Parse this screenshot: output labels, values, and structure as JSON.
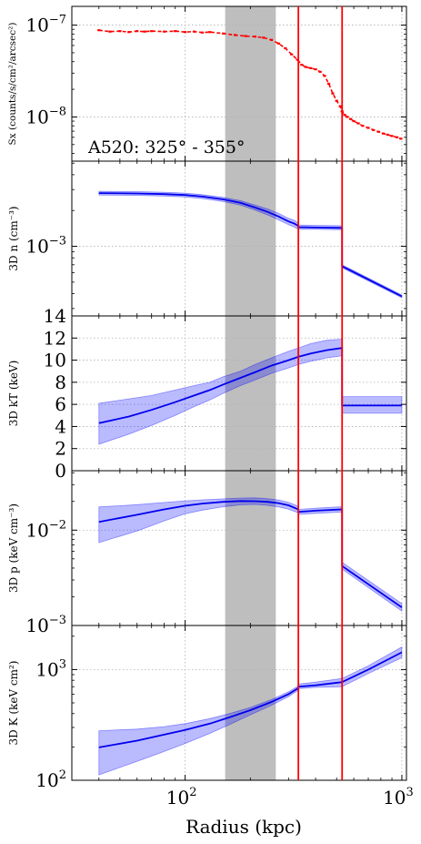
{
  "chart_data": {
    "type": "line",
    "annotation": "A520: 325° - 355°",
    "xlabel": "Radius (kpc)",
    "xscale": "log",
    "xlim": [
      30,
      1050
    ],
    "x_ticks": [
      {
        "value": 100,
        "base": "10",
        "exp": "2"
      },
      {
        "value": 1000,
        "base": "10",
        "exp": "3"
      }
    ],
    "shaded_band": {
      "x": [
        153,
        262
      ],
      "color": "#bebebe"
    },
    "vertical_lines": [
      {
        "x": 333,
        "color": "#ff0000"
      },
      {
        "x": 530,
        "color": "#ff0000"
      }
    ],
    "grid": "dotted",
    "panels": [
      {
        "id": "sx",
        "ylabel": "Sx (counts/s/cm²/arcsec²)",
        "yscale": "log",
        "ylim": [
          3.3e-09,
          1.6e-07
        ],
        "y_ticks": [
          {
            "value": 1e-07,
            "base": "10",
            "exp": "−7"
          },
          {
            "value": 1e-08,
            "base": "10",
            "exp": "−8"
          }
        ],
        "series": [
          {
            "kind": "points",
            "color": "#ff0000",
            "x": [
              40,
              45,
              50,
              55,
              60,
              65,
              70,
              80,
              90,
              100,
              110,
              120,
              130,
              150,
              170,
              190,
              210,
              230,
              250,
              270,
              290,
              310,
              330,
              345,
              360,
              380,
              400,
              420,
              440,
              460,
              480,
              500,
              520,
              530,
              545,
              560,
              580,
              600,
              630,
              660,
              700,
              740,
              780,
              820,
              860,
              900,
              950,
              990
            ],
            "y": [
              8.8e-08,
              8.5e-08,
              8.6e-08,
              8.4e-08,
              8.6e-08,
              8.5e-08,
              8.6e-08,
              8.5e-08,
              8.6e-08,
              8.4e-08,
              8.5e-08,
              8.3e-08,
              8.4e-08,
              8.1e-08,
              7.8e-08,
              7.6e-08,
              7.5e-08,
              7.3e-08,
              6.9e-08,
              6.3e-08,
              5.6e-08,
              4.8e-08,
              4.2e-08,
              3.7e-08,
              3.5e-08,
              3.4e-08,
              3.3e-08,
              3.1e-08,
              2.8e-08,
              2.3e-08,
              1.8e-08,
              1.5e-08,
              1.3e-08,
              1.15e-08,
              1.05e-08,
              1e-08,
              9.5e-09,
              9e-09,
              8.5e-09,
              8e-09,
              7.6e-09,
              7.2e-09,
              6.9e-09,
              6.6e-09,
              6.4e-09,
              6.2e-09,
              6e-09,
              5.8e-09
            ]
          }
        ]
      },
      {
        "id": "n",
        "ylabel": "3D n (cm⁻³)",
        "yscale": "log",
        "ylim": [
          0.00026,
          0.0052
        ],
        "y_ticks": [
          {
            "value": 0.001,
            "base": "10",
            "exp": "−3"
          }
        ],
        "series": [
          {
            "kind": "line",
            "color": "#0000ee",
            "x": [
              40,
              60,
              80,
              100,
              120,
              150,
              180,
              210,
              240,
              270,
              300,
              320,
              333,
              333,
              400,
              530,
              530,
              1000
            ],
            "y": [
              0.0028,
              0.00278,
              0.00275,
              0.0027,
              0.00262,
              0.00248,
              0.00232,
              0.00212,
              0.00195,
              0.00178,
              0.00162,
              0.00155,
              0.00148,
              0.00145,
              0.00144,
              0.00143,
              0.00068,
              0.00038
            ],
            "band_lo": [
              0.0027,
              0.00268,
              0.00265,
              0.0026,
              0.00252,
              0.00238,
              0.00222,
              0.00202,
              0.00184,
              0.00167,
              0.00152,
              0.00145,
              0.00139,
              0.00139,
              0.00139,
              0.00138,
              0.00066,
              0.00037
            ],
            "band_hi": [
              0.0029,
              0.00288,
              0.00285,
              0.0028,
              0.00272,
              0.00258,
              0.00242,
              0.00222,
              0.00206,
              0.00189,
              0.00172,
              0.00165,
              0.00157,
              0.00151,
              0.0015,
              0.00149,
              0.0007,
              0.00039
            ]
          }
        ]
      },
      {
        "id": "kT",
        "ylabel": "3D kT (keV)",
        "yscale": "linear",
        "ylim": [
          0,
          14
        ],
        "y_ticks": [
          {
            "value": 0,
            "label": "0"
          },
          {
            "value": 2,
            "label": "2"
          },
          {
            "value": 4,
            "label": "4"
          },
          {
            "value": 6,
            "label": "6"
          },
          {
            "value": 8,
            "label": "8"
          },
          {
            "value": 10,
            "label": "10"
          },
          {
            "value": 12,
            "label": "12"
          },
          {
            "value": 14,
            "label": "14"
          }
        ],
        "series": [
          {
            "kind": "line",
            "color": "#0000ee",
            "x": [
              40,
              55,
              70,
              90,
              110,
              130,
              150,
              180,
              210,
              250,
              300,
              333,
              380,
              450,
              530,
              530,
              1000
            ],
            "y": [
              4.3,
              4.9,
              5.5,
              6.2,
              6.8,
              7.3,
              7.8,
              8.4,
              8.9,
              9.5,
              10.0,
              10.3,
              10.6,
              10.9,
              11.1,
              5.9,
              5.9
            ],
            "band_lo": [
              2.4,
              3.3,
              4.1,
              5.0,
              5.8,
              6.4,
              7.0,
              7.7,
              8.2,
              8.8,
              9.3,
              9.6,
              9.9,
              10.2,
              10.4,
              5.2,
              5.2
            ],
            "band_hi": [
              6.1,
              6.5,
              6.8,
              7.3,
              7.7,
              8.0,
              8.5,
              9.0,
              9.6,
              10.2,
              10.8,
              11.1,
              11.5,
              11.8,
              11.9,
              6.7,
              6.7
            ]
          }
        ]
      },
      {
        "id": "p",
        "ylabel": "3D p (keV cm⁻³)",
        "yscale": "log",
        "ylim": [
          0.001,
          0.042
        ],
        "y_ticks": [
          {
            "value": 0.01,
            "base": "10",
            "exp": "−2"
          },
          {
            "value": 0.001,
            "base": "10",
            "exp": "−3"
          }
        ],
        "series": [
          {
            "kind": "line",
            "color": "#0000ee",
            "x": [
              40,
              60,
              80,
              100,
              120,
              150,
              180,
              210,
              240,
              270,
              300,
              333,
              333,
              400,
              530,
              530,
              1000
            ],
            "y": [
              0.0122,
              0.0145,
              0.0165,
              0.018,
              0.019,
              0.0198,
              0.0202,
              0.0201,
              0.0198,
              0.0192,
              0.0182,
              0.0165,
              0.0155,
              0.016,
              0.0165,
              0.0042,
              0.00155
            ],
            "band_lo": [
              0.0074,
              0.0098,
              0.0125,
              0.0148,
              0.0162,
              0.0176,
              0.0184,
              0.0186,
              0.0182,
              0.0175,
              0.0166,
              0.0152,
              0.0146,
              0.015,
              0.0155,
              0.0039,
              0.00142
            ],
            "band_hi": [
              0.0175,
              0.0185,
              0.0195,
              0.0203,
              0.0208,
              0.0213,
              0.0217,
              0.0218,
              0.0214,
              0.0207,
              0.0196,
              0.0178,
              0.0165,
              0.017,
              0.0176,
              0.0046,
              0.0017
            ]
          }
        ]
      },
      {
        "id": "K",
        "ylabel": "3D K (keV cm²)",
        "yscale": "log",
        "ylim": [
          100,
          2500
        ],
        "y_ticks": [
          {
            "value": 1000,
            "base": "10",
            "exp": "3"
          },
          {
            "value": 100,
            "base": "10",
            "exp": "2"
          }
        ],
        "series": [
          {
            "kind": "line",
            "color": "#0000ee",
            "x": [
              40,
              60,
              80,
              100,
              130,
              160,
              200,
              250,
              300,
              333,
              333,
              400,
              530,
              700,
              1000
            ],
            "y": [
              198,
              228,
              258,
              285,
              325,
              370,
              430,
              510,
              600,
              680,
              700,
              720,
              770,
              1000,
              1430
            ],
            "band_lo": [
              112,
              148,
              182,
              215,
              265,
              318,
              390,
              475,
              570,
              650,
              670,
              690,
              700,
              920,
              1280
            ],
            "band_hi": [
              280,
              290,
              305,
              325,
              360,
              400,
              455,
              535,
              630,
              710,
              740,
              770,
              830,
              1080,
              1600
            ]
          }
        ]
      }
    ]
  }
}
